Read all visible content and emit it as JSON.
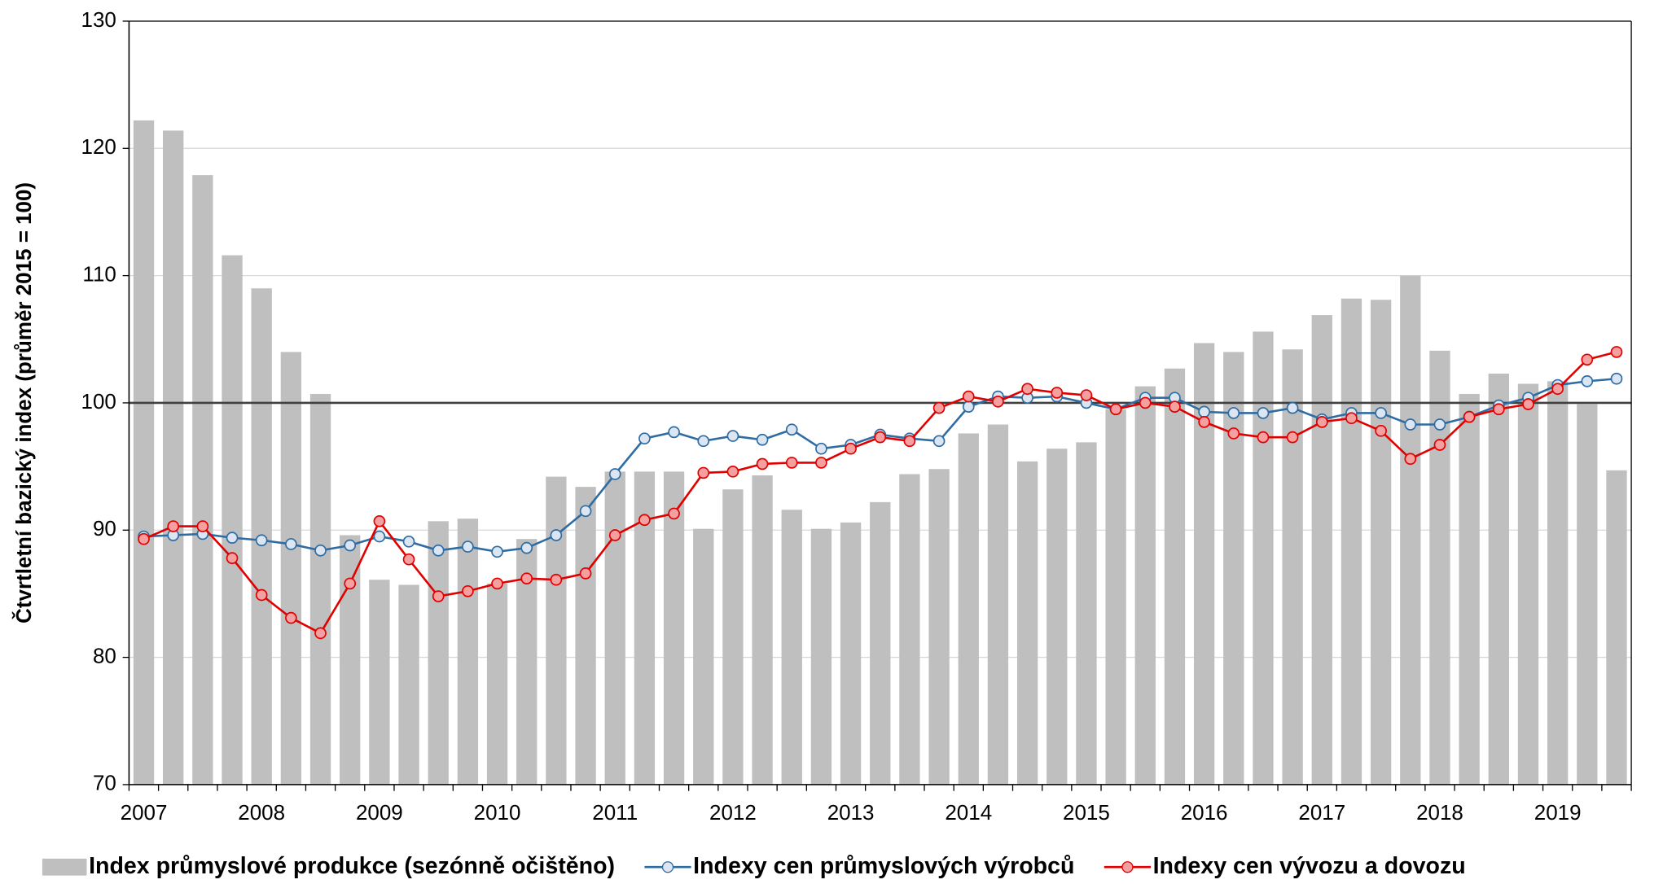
{
  "chart_data": {
    "type": "bar",
    "y_label": "Čtvrtletní bazický index (průměr 2015 = 100)",
    "categories": [
      "2007",
      null,
      null,
      null,
      "2008",
      null,
      null,
      null,
      "2009",
      null,
      null,
      null,
      "2010",
      null,
      null,
      null,
      "2011",
      null,
      null,
      null,
      "2012",
      null,
      null,
      null,
      "2013",
      null,
      null,
      null,
      "2014",
      null,
      null,
      null,
      "2015",
      null,
      null,
      null,
      "2016",
      null,
      null,
      null,
      "2017",
      null,
      null,
      null,
      "2018",
      null,
      null,
      null,
      "2019",
      null,
      null
    ],
    "series": [
      {
        "name": "Index průmyslové produkce (sezónně očištěno)",
        "type": "bar",
        "color": "#bfbfbf",
        "values": [
          122.2,
          121.4,
          117.9,
          111.6,
          109.0,
          104.0,
          100.7,
          89.6,
          86.1,
          85.7,
          90.7,
          90.9,
          85.8,
          89.3,
          94.2,
          93.4,
          94.6,
          94.6,
          94.6,
          90.1,
          93.2,
          94.3,
          91.6,
          90.1,
          90.6,
          92.2,
          94.4,
          94.8,
          97.6,
          98.3,
          95.4,
          96.4,
          96.9,
          99.5,
          101.3,
          102.7,
          104.7,
          104.0,
          105.6,
          104.2,
          106.9,
          108.2,
          108.1,
          110.0,
          104.1,
          100.7,
          102.3,
          101.5,
          101.7,
          99.9,
          94.7
        ]
      },
      {
        "name": "Indexy cen průmyslových výrobců",
        "type": "line",
        "color": "#2e6ca4",
        "marker_fill": "#dce6f2",
        "values": [
          89.5,
          89.6,
          89.7,
          89.4,
          89.2,
          88.9,
          88.4,
          88.8,
          89.5,
          89.1,
          88.4,
          88.7,
          88.3,
          88.6,
          89.6,
          91.5,
          94.4,
          97.2,
          97.7,
          97.0,
          97.4,
          97.1,
          97.9,
          96.4,
          96.7,
          97.5,
          97.2,
          97.0,
          99.7,
          100.5,
          100.4,
          100.5,
          100.0,
          99.5,
          100.4,
          100.4,
          99.3,
          99.2,
          99.2,
          99.6,
          98.7,
          99.2,
          99.2,
          98.3,
          98.3,
          98.9,
          99.8,
          100.4,
          101.4,
          101.7,
          101.9
        ]
      },
      {
        "name": "Indexy cen vývozu a dovozu",
        "type": "line",
        "color": "#e00000",
        "marker_fill": "#f4a0a0",
        "values": [
          89.3,
          90.3,
          90.3,
          87.8,
          84.9,
          83.1,
          81.9,
          85.8,
          90.7,
          87.7,
          84.8,
          85.2,
          85.8,
          86.2,
          86.1,
          86.6,
          89.6,
          90.8,
          91.3,
          94.5,
          94.6,
          95.2,
          95.3,
          95.3,
          96.4,
          97.3,
          97.0,
          99.6,
          100.5,
          100.1,
          101.1,
          100.8,
          100.6,
          99.5,
          100.0,
          99.7,
          98.5,
          97.6,
          97.3,
          97.3,
          98.5,
          98.8,
          97.8,
          95.6,
          96.7,
          98.9,
          99.5,
          99.9,
          101.1,
          103.4,
          104.0
        ]
      }
    ],
    "reference_line": 100,
    "ylim": [
      70,
      130
    ],
    "yticks": [
      70,
      80,
      90,
      100,
      110,
      120,
      130
    ],
    "grid": true,
    "legend": "bottom"
  }
}
